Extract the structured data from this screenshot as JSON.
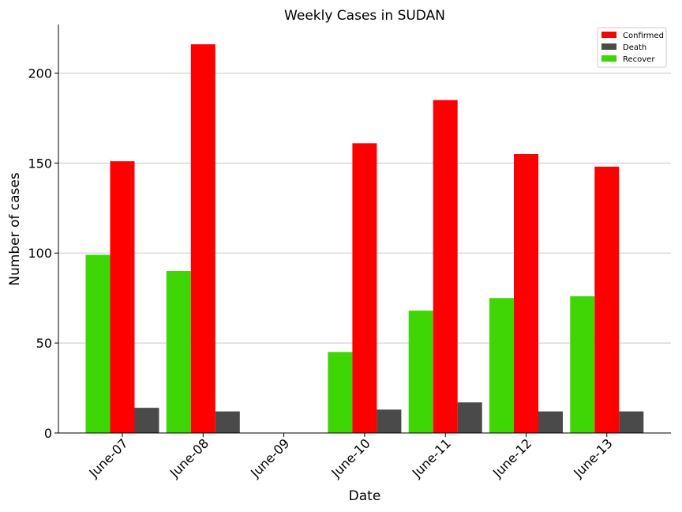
{
  "chart_data": {
    "type": "bar",
    "title": "Weekly Cases in SUDAN",
    "xlabel": "Date",
    "ylabel": "Number of cases",
    "categories": [
      "June-07",
      "June-08",
      "June-09",
      "June-10",
      "June-11",
      "June-12",
      "June-13"
    ],
    "series": [
      {
        "name": "Recover",
        "color": "#3ed604",
        "values": [
          99,
          90,
          0,
          45,
          68,
          75,
          76
        ]
      },
      {
        "name": "Confirmed",
        "color": "#ff0000",
        "values": [
          151,
          216,
          0,
          161,
          185,
          155,
          148
        ]
      },
      {
        "name": "Death",
        "color": "#4a4a4a",
        "values": [
          14,
          12,
          0,
          13,
          17,
          12,
          12
        ]
      }
    ],
    "legend": [
      "Confirmed",
      "Death",
      "Recover"
    ],
    "legend_position": "top-right",
    "ylim": [
      0,
      227
    ],
    "yticks": [
      0,
      50,
      100,
      150,
      200
    ],
    "grid": "horizontal",
    "xtick_rotation": 45
  }
}
